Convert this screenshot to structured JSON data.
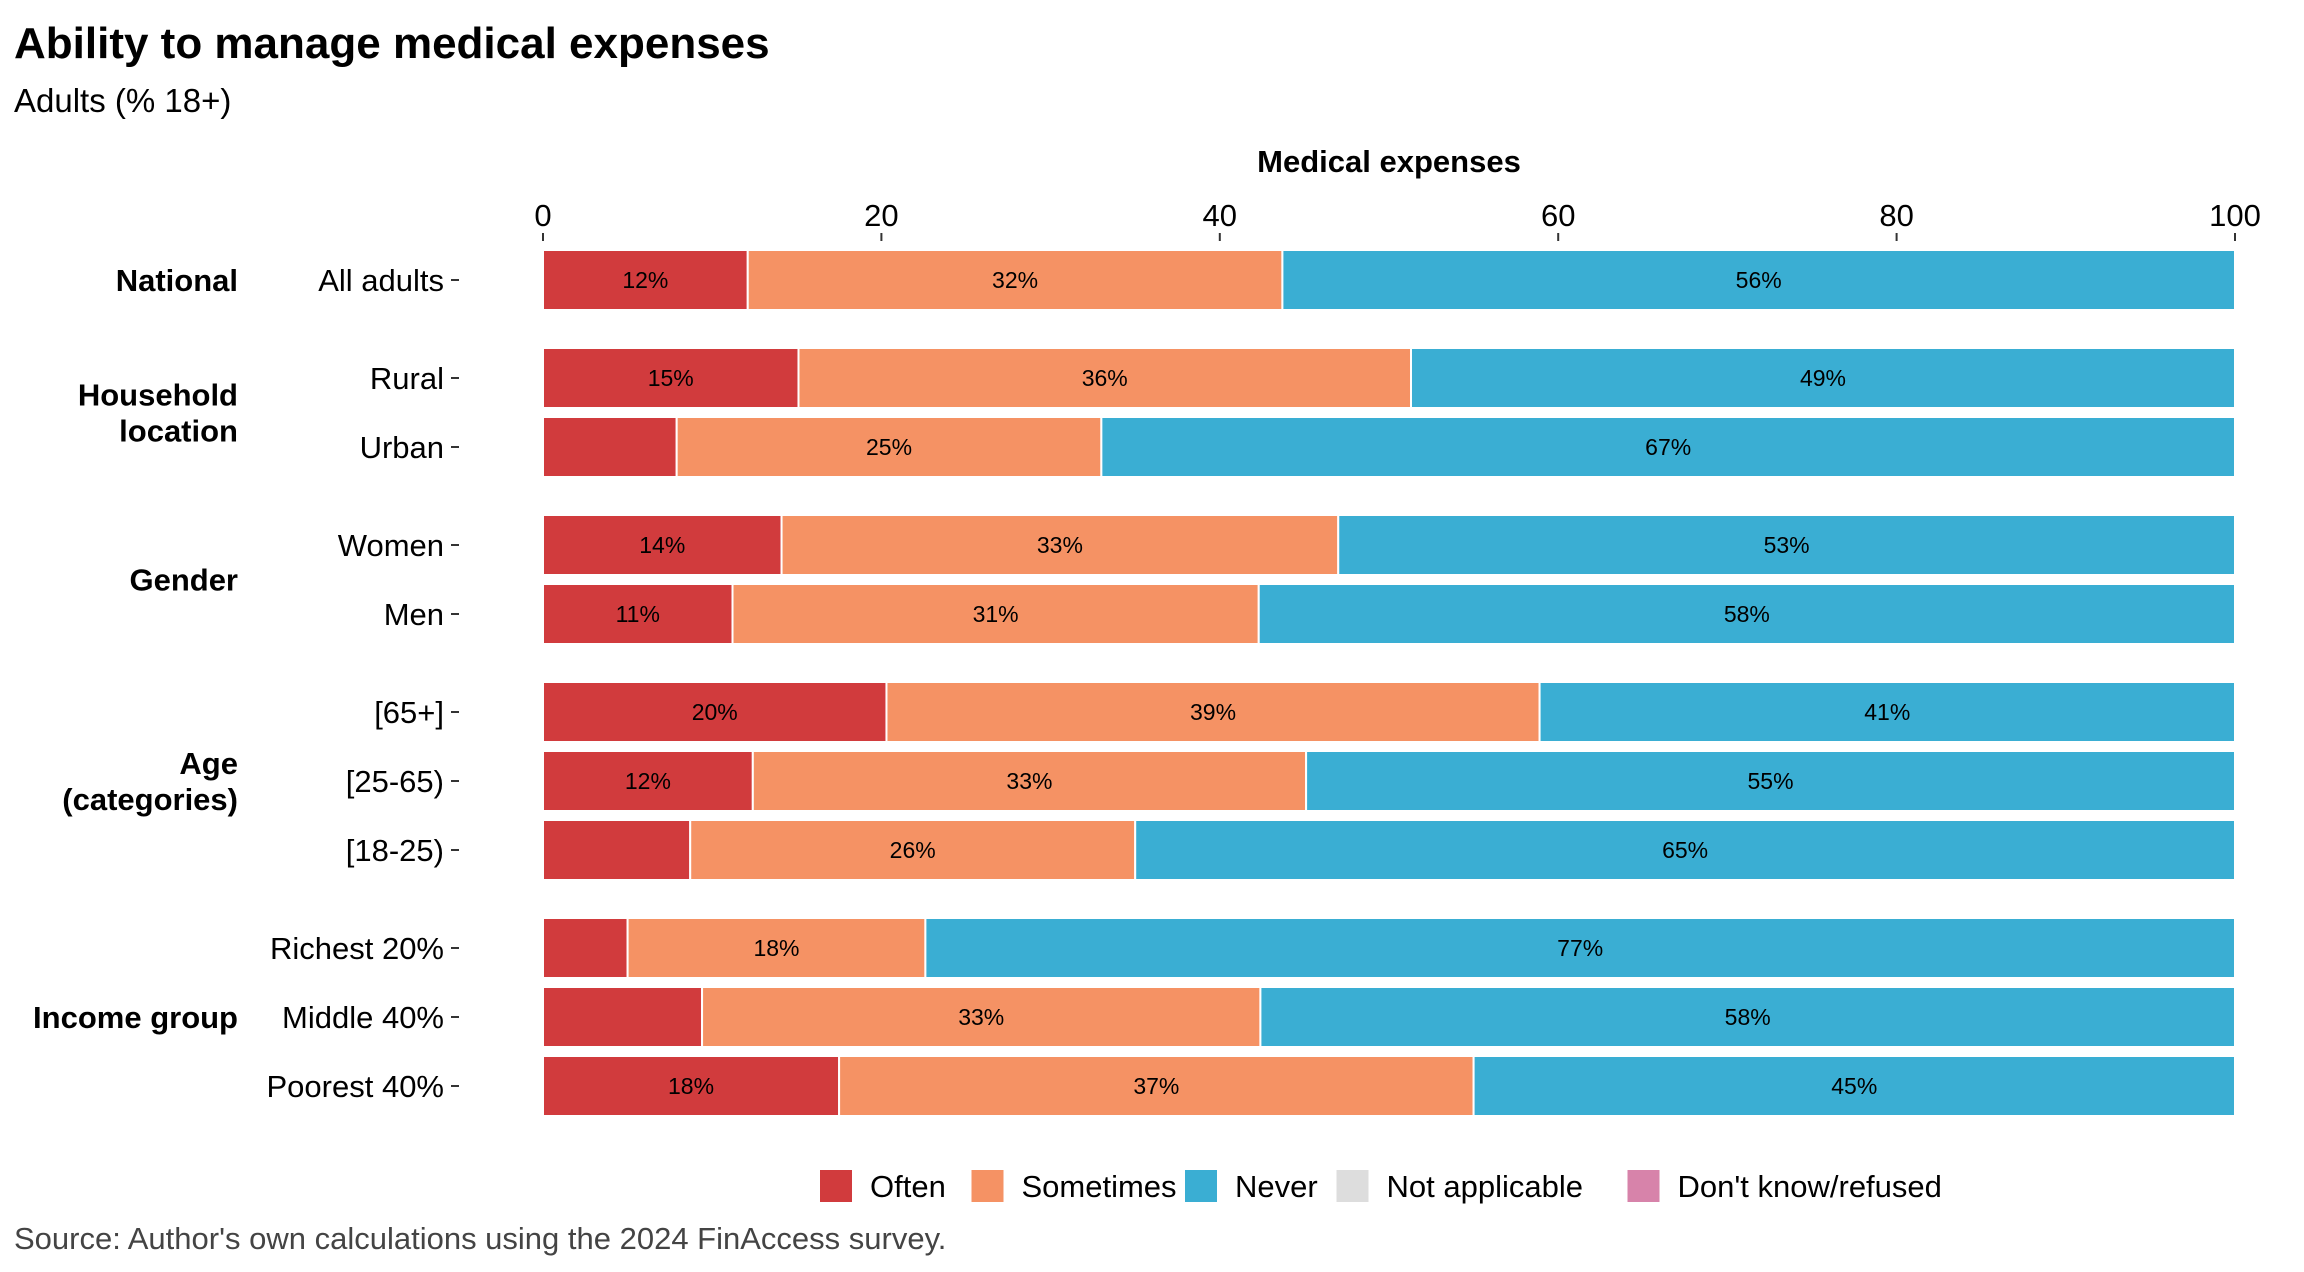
{
  "chart_data": {
    "type": "bar",
    "orientation": "horizontal",
    "stacked": true,
    "title": "Ability to manage medical expenses",
    "subtitle": "Adults (% 18+)",
    "xlabel": "Medical expenses",
    "xlim": [
      0,
      100
    ],
    "xticks": [
      0,
      20,
      40,
      60,
      80,
      100
    ],
    "grid": false,
    "legend_position": "bottom",
    "groups": [
      {
        "name": "National",
        "rows": [
          {
            "label": "All adults",
            "values": [
              12.1,
              31.6,
              56.3
            ],
            "labels": [
              "12%",
              "32%",
              "56%"
            ]
          }
        ]
      },
      {
        "name": "Household\nlocation",
        "rows": [
          {
            "label": "Rural",
            "values": [
              15.1,
              36.2,
              48.7
            ],
            "labels": [
              "15%",
              "36%",
              "49%"
            ]
          },
          {
            "label": "Urban",
            "values": [
              7.9,
              25.1,
              67.0
            ],
            "labels": [
              "",
              "25%",
              "67%"
            ]
          }
        ]
      },
      {
        "name": "Gender",
        "rows": [
          {
            "label": "Women",
            "values": [
              14.1,
              32.9,
              53.0
            ],
            "labels": [
              "14%",
              "33%",
              "53%"
            ]
          },
          {
            "label": "Men",
            "values": [
              11.2,
              31.1,
              57.7
            ],
            "labels": [
              "11%",
              "31%",
              "58%"
            ]
          }
        ]
      },
      {
        "name": "Age\n(categories)",
        "rows": [
          {
            "label": "[65+]",
            "values": [
              20.3,
              38.6,
              41.1
            ],
            "labels": [
              "20%",
              "39%",
              "41%"
            ]
          },
          {
            "label": "[25-65)",
            "values": [
              12.4,
              32.7,
              54.9
            ],
            "labels": [
              "12%",
              "33%",
              "55%"
            ]
          },
          {
            "label": "[18-25)",
            "values": [
              8.7,
              26.3,
              65.0
            ],
            "labels": [
              "",
              "26%",
              "65%"
            ]
          }
        ]
      },
      {
        "name": "Income group",
        "rows": [
          {
            "label": "Richest 20%",
            "values": [
              5.0,
              17.6,
              77.4
            ],
            "labels": [
              "",
              "18%",
              "77%"
            ]
          },
          {
            "label": "Middle 40%",
            "values": [
              9.4,
              33.0,
              57.6
            ],
            "labels": [
              "",
              "33%",
              "58%"
            ]
          },
          {
            "label": "Poorest 40%",
            "values": [
              17.5,
              37.5,
              45.0
            ],
            "labels": [
              "18%",
              "37%",
              "45%"
            ]
          }
        ]
      }
    ],
    "series": [
      {
        "name": "Often",
        "color": "#D13B3D"
      },
      {
        "name": "Sometimes",
        "color": "#F59264"
      },
      {
        "name": "Never",
        "color": "#3AAED3"
      },
      {
        "name": "Not applicable",
        "color": "#DDDDDD"
      },
      {
        "name": "Don't know/refused",
        "color": "#D783AA"
      }
    ],
    "source": "Source: Author's own calculations using the 2024 FinAccess survey."
  }
}
